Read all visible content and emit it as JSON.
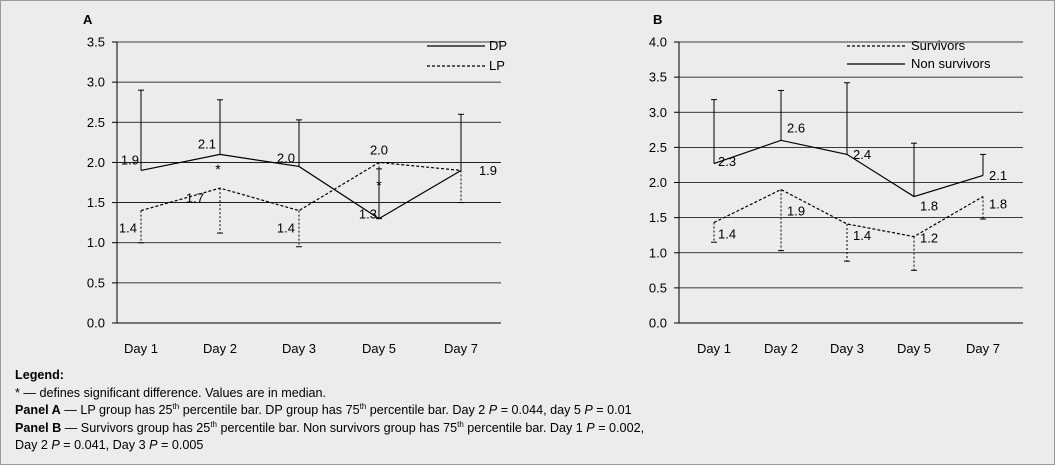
{
  "chart_data": [
    {
      "panel": "A",
      "type": "line",
      "categories": [
        "Day 1",
        "Day 2",
        "Day 3",
        "Day 5",
        "Day 7"
      ],
      "ylim": [
        0.0,
        3.5
      ],
      "yticks": [
        "0.0",
        "0.5",
        "1.0",
        "1.5",
        "2.0",
        "2.5",
        "3.0",
        "3.5"
      ],
      "grid": true,
      "legend_position": "top-right",
      "series": [
        {
          "name": "DP",
          "style": "solid",
          "values": [
            1.9,
            2.1,
            1.95,
            1.3,
            1.9
          ],
          "labels": [
            "1.9",
            "2.1",
            "2.0",
            "1.3",
            "1.9"
          ],
          "error_bar": "75th percentile",
          "error_to": [
            2.9,
            2.78,
            2.53,
            1.92,
            2.6
          ]
        },
        {
          "name": "LP",
          "style": "dashed",
          "values": [
            1.4,
            1.68,
            1.4,
            2.0,
            1.9
          ],
          "labels": [
            "1.4",
            "1.7",
            "1.4",
            "2.0",
            ""
          ],
          "error_bar": "25th percentile",
          "error_to": [
            1.0,
            1.12,
            0.95,
            1.3,
            1.5
          ]
        }
      ],
      "significance_markers": [
        {
          "category": "Day 2",
          "symbol": "*"
        },
        {
          "category": "Day 5",
          "symbol": "*"
        }
      ]
    },
    {
      "panel": "B",
      "type": "line",
      "categories": [
        "Day 1",
        "Day 2",
        "Day 3",
        "Day 5",
        "Day 7"
      ],
      "ylim": [
        0.0,
        4.0
      ],
      "yticks": [
        "0.0",
        "0.5",
        "1.0",
        "1.5",
        "2.0",
        "2.5",
        "3.0",
        "3.5",
        "4.0"
      ],
      "grid": true,
      "legend_position": "top-right",
      "series": [
        {
          "name": "Survivors",
          "style": "dashed",
          "values": [
            1.43,
            1.9,
            1.41,
            1.23,
            1.8
          ],
          "labels": [
            "1.4",
            "1.9",
            "1.4",
            "1.2",
            "1.8"
          ],
          "error_bar": "25th percentile",
          "error_to": [
            1.15,
            1.03,
            0.88,
            0.75,
            1.48
          ]
        },
        {
          "name": "Non survivors",
          "style": "solid",
          "values": [
            2.27,
            2.6,
            2.4,
            1.8,
            2.1
          ],
          "labels": [
            "2.3",
            "2.6",
            "2.4",
            "1.8",
            "2.1"
          ],
          "error_bar": "75th percentile",
          "error_to": [
            3.18,
            3.31,
            3.42,
            2.56,
            2.4
          ]
        }
      ]
    }
  ],
  "legend_block": {
    "heading": "Legend:",
    "line1": "* — defines significant difference. Values are in median.",
    "panelA": {
      "label": "Panel A",
      "text1": " — LP group has 25",
      "sup1": "th",
      "text2": " percentile bar. DP group has 75",
      "sup2": "th",
      "text3": " percentile bar. Day 2 ",
      "p": "P",
      "text4": " = 0.044, day 5 ",
      "text5": " = 0.01"
    },
    "panelB": {
      "label": "Panel B",
      "text1": " — Survivors group has 25",
      "sup1": "th",
      "text2": " percentile bar. Non survivors group has 75",
      "sup2": "th",
      "text3": " percentile bar. Day 1 ",
      "p": "P",
      "text4": " = 0.002,",
      "line2a": "Day 2 ",
      "line2b": " = 0.041, Day 3 ",
      "line2c": " = 0.005"
    }
  }
}
